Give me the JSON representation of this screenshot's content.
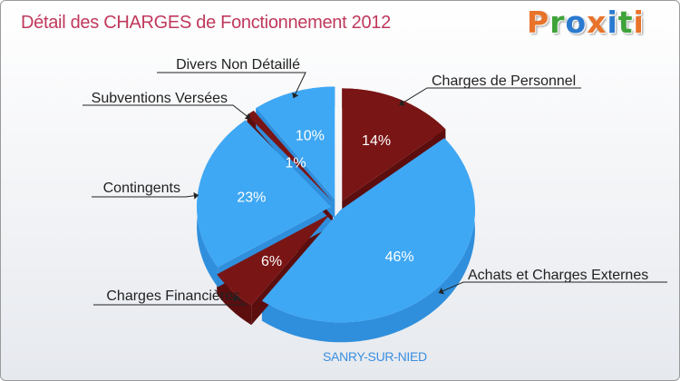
{
  "title": "Détail des CHARGES de Fonctionnement 2012",
  "logo": {
    "text": "Proxiti",
    "colors": [
      "#e8732a",
      "#3fa33a",
      "#2a7ad0",
      "#e8732a",
      "#2a7ad0",
      "#3fa33a",
      "#e8732a"
    ]
  },
  "town": "SANRY-SUR-NIED",
  "colors": {
    "blue": "#3fa8f4",
    "blue_side": "#2f8fdc",
    "red": "#7a1515",
    "red_side": "#5c0e0e",
    "title": "#c0395c"
  },
  "chart_data": {
    "type": "pie",
    "title": "Détail des CHARGES de Fonctionnement 2012",
    "categories": [
      "Charges de Personnel",
      "Achats et Charges Externes",
      "Charges Financières",
      "Contingents",
      "Subventions Versées",
      "Divers Non Détaillé"
    ],
    "values": [
      14,
      46,
      6,
      23,
      1,
      10
    ],
    "labels": [
      "14%",
      "46%",
      "6%",
      "23%",
      "1%",
      "10%"
    ],
    "slice_colors": [
      "red",
      "blue",
      "red",
      "blue",
      "red",
      "blue"
    ]
  }
}
